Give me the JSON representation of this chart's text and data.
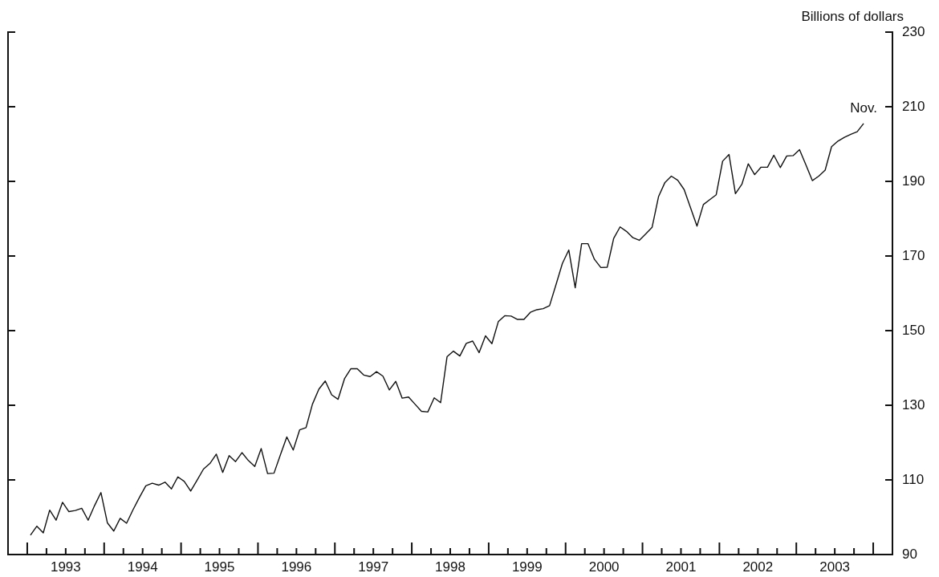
{
  "chart_data": {
    "type": "line",
    "ylabel": "Billions of dollars",
    "marker": "none",
    "x": [
      "1993-01",
      "1993-02",
      "1993-03",
      "1993-04",
      "1993-05",
      "1993-06",
      "1993-07",
      "1993-08",
      "1993-09",
      "1993-10",
      "1993-11",
      "1993-12",
      "1994-01",
      "1994-02",
      "1994-03",
      "1994-04",
      "1994-05",
      "1994-06",
      "1994-07",
      "1994-08",
      "1994-09",
      "1994-10",
      "1994-11",
      "1994-12",
      "1995-01",
      "1995-02",
      "1995-03",
      "1995-04",
      "1995-05",
      "1995-06",
      "1995-07",
      "1995-08",
      "1995-09",
      "1995-10",
      "1995-11",
      "1995-12",
      "1996-01",
      "1996-02",
      "1996-03",
      "1996-04",
      "1996-05",
      "1996-06",
      "1996-07",
      "1996-08",
      "1996-09",
      "1996-10",
      "1996-11",
      "1996-12",
      "1997-01",
      "1997-02",
      "1997-03",
      "1997-04",
      "1997-05",
      "1997-06",
      "1997-07",
      "1997-08",
      "1997-09",
      "1997-10",
      "1997-11",
      "1997-12",
      "1998-01",
      "1998-02",
      "1998-03",
      "1998-04",
      "1998-05",
      "1998-06",
      "1998-07",
      "1998-08",
      "1998-09",
      "1998-10",
      "1998-11",
      "1998-12",
      "1999-01",
      "1999-02",
      "1999-03",
      "1999-04",
      "1999-05",
      "1999-06",
      "1999-07",
      "1999-08",
      "1999-09",
      "1999-10",
      "1999-11",
      "1999-12",
      "2000-01",
      "2000-02",
      "2000-03",
      "2000-04",
      "2000-05",
      "2000-06",
      "2000-07",
      "2000-08",
      "2000-09",
      "2000-10",
      "2000-11",
      "2000-12",
      "2001-01",
      "2001-02",
      "2001-03",
      "2001-04",
      "2001-05",
      "2001-06",
      "2001-07",
      "2001-08",
      "2001-09",
      "2001-10",
      "2001-11",
      "2001-12",
      "2002-01",
      "2002-02",
      "2002-03",
      "2002-04",
      "2002-05",
      "2002-06",
      "2002-07",
      "2002-08",
      "2002-09",
      "2002-10",
      "2002-11",
      "2002-12",
      "2003-01",
      "2003-02",
      "2003-03",
      "2003-04",
      "2003-05",
      "2003-06",
      "2003-07",
      "2003-08",
      "2003-09",
      "2003-10",
      "2003-11"
    ],
    "series": [
      {
        "color": "#111111",
        "values": [
          95.2,
          97.6,
          95.8,
          101.9,
          99.2,
          104.0,
          101.5,
          101.8,
          102.4,
          99.2,
          103.1,
          106.6,
          98.5,
          96.3,
          99.7,
          98.4,
          102.0,
          105.3,
          108.4,
          109.1,
          108.6,
          109.4,
          107.6,
          110.8,
          109.6,
          107.0,
          109.9,
          112.9,
          114.4,
          116.9,
          112.0,
          116.5,
          114.9,
          117.3,
          115.2,
          113.6,
          118.4,
          111.7,
          111.8,
          116.7,
          121.5,
          118.0,
          123.4,
          124.0,
          130.3,
          134.3,
          136.5,
          132.8,
          131.6,
          137.1,
          139.8,
          139.8,
          138.1,
          137.7,
          139.0,
          137.8,
          134.1,
          136.4,
          131.9,
          132.2,
          130.3,
          128.4,
          128.2,
          132.0,
          130.7,
          143.0,
          144.5,
          143.2,
          146.6,
          147.2,
          144.1,
          148.6,
          146.5,
          152.4,
          154.0,
          153.9,
          153.0,
          153.0,
          154.9,
          155.6,
          155.9,
          156.7,
          162.3,
          168.0,
          171.6,
          161.5,
          173.3,
          173.3,
          169.1,
          166.9,
          167.0,
          174.7,
          177.8,
          176.6,
          174.9,
          174.2,
          175.9,
          177.7,
          185.9,
          189.7,
          191.4,
          190.3,
          187.8,
          182.9,
          178.0,
          183.8,
          185.1,
          186.4,
          195.4,
          197.2,
          186.7,
          189.2,
          194.7,
          191.8,
          193.8,
          193.8,
          197.0,
          193.7,
          196.8,
          196.9,
          198.5,
          194.4,
          190.2,
          191.4,
          193.0,
          199.3,
          200.8,
          201.8,
          202.6,
          203.3,
          205.5
        ]
      }
    ],
    "xlim": [
      "1992-10-01",
      "2004-04-01"
    ],
    "xticks": [
      {
        "value": "1993-01-01",
        "label": null
      },
      {
        "value": "1993-04-01",
        "label": null
      },
      {
        "value": "1993-07-01",
        "label": "1993"
      },
      {
        "value": "1993-10-01",
        "label": null
      },
      {
        "value": "1994-01-01",
        "label": null
      },
      {
        "value": "1994-04-01",
        "label": null
      },
      {
        "value": "1994-07-01",
        "label": "1994"
      },
      {
        "value": "1994-10-01",
        "label": null
      },
      {
        "value": "1995-01-01",
        "label": null
      },
      {
        "value": "1995-04-01",
        "label": null
      },
      {
        "value": "1995-07-01",
        "label": "1995"
      },
      {
        "value": "1995-10-01",
        "label": null
      },
      {
        "value": "1996-01-01",
        "label": null
      },
      {
        "value": "1996-04-01",
        "label": null
      },
      {
        "value": "1996-07-01",
        "label": "1996"
      },
      {
        "value": "1996-10-01",
        "label": null
      },
      {
        "value": "1997-01-01",
        "label": null
      },
      {
        "value": "1997-04-01",
        "label": null
      },
      {
        "value": "1997-07-01",
        "label": "1997"
      },
      {
        "value": "1997-10-01",
        "label": null
      },
      {
        "value": "1998-01-01",
        "label": null
      },
      {
        "value": "1998-04-01",
        "label": null
      },
      {
        "value": "1998-07-01",
        "label": "1998"
      },
      {
        "value": "1998-10-01",
        "label": null
      },
      {
        "value": "1999-01-01",
        "label": null
      },
      {
        "value": "1999-04-01",
        "label": null
      },
      {
        "value": "1999-07-01",
        "label": "1999"
      },
      {
        "value": "1999-10-01",
        "label": null
      },
      {
        "value": "2000-01-01",
        "label": null
      },
      {
        "value": "2000-04-01",
        "label": null
      },
      {
        "value": "2000-07-01",
        "label": "2000"
      },
      {
        "value": "2000-10-01",
        "label": null
      },
      {
        "value": "2001-01-01",
        "label": null
      },
      {
        "value": "2001-04-01",
        "label": null
      },
      {
        "value": "2001-07-01",
        "label": "2001"
      },
      {
        "value": "2001-10-01",
        "label": null
      },
      {
        "value": "2002-01-01",
        "label": null
      },
      {
        "value": "2002-04-01",
        "label": null
      },
      {
        "value": "2002-07-01",
        "label": "2002"
      },
      {
        "value": "2002-10-01",
        "label": null
      },
      {
        "value": "2003-01-01",
        "label": null
      },
      {
        "value": "2003-04-01",
        "label": null
      },
      {
        "value": "2003-07-01",
        "label": "2003"
      },
      {
        "value": "2003-10-01",
        "label": null
      },
      {
        "value": "2004-01-01",
        "label": null
      }
    ],
    "ylim": [
      90,
      230
    ],
    "yticks": [
      90,
      110,
      130,
      150,
      170,
      190,
      210,
      230
    ],
    "annotations": [
      {
        "text": "Nov.",
        "x": "2003-11",
        "y": 205.5
      }
    ]
  }
}
